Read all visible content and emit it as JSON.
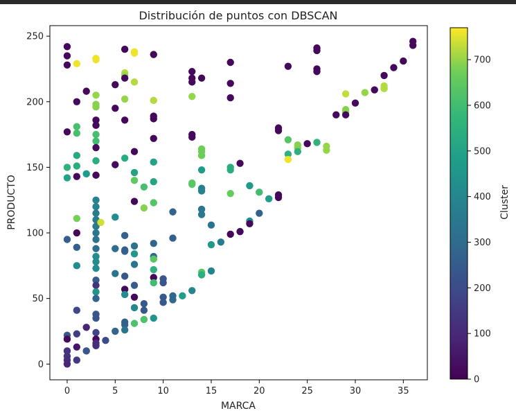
{
  "chart_data": {
    "type": "scatter",
    "title": "Distribución de puntos con DBSCAN",
    "xlabel": "MARCA",
    "ylabel": "PRODUCTO",
    "xlim": [
      -1.8,
      37.5
    ],
    "ylim": [
      -12,
      258
    ],
    "xticks": [
      0,
      5,
      10,
      15,
      20,
      25,
      30,
      35
    ],
    "yticks": [
      0,
      50,
      100,
      150,
      200,
      250
    ],
    "grid": false,
    "colormap": "viridis",
    "colorbar": {
      "label": "Cluster",
      "min": 0,
      "max": 770,
      "ticks": [
        0,
        100,
        200,
        300,
        400,
        500,
        600,
        700
      ]
    },
    "points": [
      {
        "x": 0,
        "y": 242,
        "c": 20
      },
      {
        "x": 0,
        "y": 235,
        "c": 20
      },
      {
        "x": 0,
        "y": 228,
        "c": 20
      },
      {
        "x": 0,
        "y": 177,
        "c": 20
      },
      {
        "x": 0,
        "y": 150,
        "c": 560
      },
      {
        "x": 0,
        "y": 142,
        "c": 500
      },
      {
        "x": 0,
        "y": 95,
        "c": 260
      },
      {
        "x": 0,
        "y": 22,
        "c": 240
      },
      {
        "x": 0,
        "y": 19,
        "c": 20
      },
      {
        "x": 0,
        "y": 10,
        "c": 130
      },
      {
        "x": 0,
        "y": 6,
        "c": 130
      },
      {
        "x": 0,
        "y": 3,
        "c": 110
      },
      {
        "x": 0,
        "y": 0,
        "c": 90
      },
      {
        "x": 1,
        "y": 229,
        "c": 760
      },
      {
        "x": 1,
        "y": 200,
        "c": 20
      },
      {
        "x": 1,
        "y": 181,
        "c": 610
      },
      {
        "x": 1,
        "y": 176,
        "c": 610
      },
      {
        "x": 1,
        "y": 159,
        "c": 520
      },
      {
        "x": 1,
        "y": 151,
        "c": 540
      },
      {
        "x": 1,
        "y": 143,
        "c": 20
      },
      {
        "x": 1,
        "y": 111,
        "c": 680
      },
      {
        "x": 1,
        "y": 100,
        "c": 20
      },
      {
        "x": 1,
        "y": 89,
        "c": 260
      },
      {
        "x": 1,
        "y": 75,
        "c": 420
      },
      {
        "x": 1,
        "y": 41,
        "c": 190
      },
      {
        "x": 1,
        "y": 23,
        "c": 160
      },
      {
        "x": 1,
        "y": 13,
        "c": 50
      },
      {
        "x": 1,
        "y": 3,
        "c": 150
      },
      {
        "x": 2,
        "y": 208,
        "c": 20
      },
      {
        "x": 2,
        "y": 145,
        "c": 470
      },
      {
        "x": 2,
        "y": 28,
        "c": 90
      },
      {
        "x": 2,
        "y": 10,
        "c": 230
      },
      {
        "x": 3,
        "y": 233,
        "c": 760
      },
      {
        "x": 3,
        "y": 232,
        "c": 760
      },
      {
        "x": 3,
        "y": 205,
        "c": 700
      },
      {
        "x": 3,
        "y": 198,
        "c": 690
      },
      {
        "x": 3,
        "y": 196,
        "c": 690
      },
      {
        "x": 3,
        "y": 186,
        "c": 20
      },
      {
        "x": 3,
        "y": 182,
        "c": 20
      },
      {
        "x": 3,
        "y": 175,
        "c": 610
      },
      {
        "x": 3,
        "y": 170,
        "c": 600
      },
      {
        "x": 3,
        "y": 165,
        "c": 20
      },
      {
        "x": 3,
        "y": 155,
        "c": 540
      },
      {
        "x": 3,
        "y": 144,
        "c": 20
      },
      {
        "x": 3,
        "y": 125,
        "c": 380
      },
      {
        "x": 3,
        "y": 120,
        "c": 380
      },
      {
        "x": 3,
        "y": 115,
        "c": 360
      },
      {
        "x": 3,
        "y": 110,
        "c": 360
      },
      {
        "x": 3,
        "y": 105,
        "c": 350
      },
      {
        "x": 3,
        "y": 100,
        "c": 340
      },
      {
        "x": 3,
        "y": 95,
        "c": 330
      },
      {
        "x": 3,
        "y": 88,
        "c": 320
      },
      {
        "x": 3,
        "y": 82,
        "c": 420
      },
      {
        "x": 3,
        "y": 78,
        "c": 420
      },
      {
        "x": 3,
        "y": 73,
        "c": 420
      },
      {
        "x": 3,
        "y": 64,
        "c": 250
      },
      {
        "x": 3,
        "y": 60,
        "c": 130
      },
      {
        "x": 3,
        "y": 55,
        "c": 440
      },
      {
        "x": 3,
        "y": 50,
        "c": 280
      },
      {
        "x": 3,
        "y": 38,
        "c": 230
      },
      {
        "x": 3,
        "y": 35,
        "c": 230
      },
      {
        "x": 3,
        "y": 24,
        "c": 180
      },
      {
        "x": 3,
        "y": 19,
        "c": 20
      },
      {
        "x": 3,
        "y": 16,
        "c": 110
      },
      {
        "x": 3,
        "y": 14,
        "c": 110
      },
      {
        "x": 3.5,
        "y": 108,
        "c": 740
      },
      {
        "x": 4,
        "y": 18,
        "c": 200
      },
      {
        "x": 5,
        "y": 213,
        "c": 20
      },
      {
        "x": 5,
        "y": 195,
        "c": 20
      },
      {
        "x": 5,
        "y": 152,
        "c": 20
      },
      {
        "x": 5,
        "y": 112,
        "c": 420
      },
      {
        "x": 5,
        "y": 88,
        "c": 310
      },
      {
        "x": 5,
        "y": 69,
        "c": 330
      },
      {
        "x": 5,
        "y": 25,
        "c": 280
      },
      {
        "x": 6,
        "y": 240,
        "c": 20
      },
      {
        "x": 6,
        "y": 222,
        "c": 720
      },
      {
        "x": 6,
        "y": 220,
        "c": 700
      },
      {
        "x": 6,
        "y": 218,
        "c": 20
      },
      {
        "x": 6,
        "y": 202,
        "c": 700
      },
      {
        "x": 6,
        "y": 186,
        "c": 20
      },
      {
        "x": 6,
        "y": 157,
        "c": 530
      },
      {
        "x": 6,
        "y": 98,
        "c": 270
      },
      {
        "x": 6,
        "y": 87,
        "c": 260
      },
      {
        "x": 6,
        "y": 86,
        "c": 260
      },
      {
        "x": 6,
        "y": 67,
        "c": 240
      },
      {
        "x": 6,
        "y": 57,
        "c": 20
      },
      {
        "x": 6,
        "y": 53,
        "c": 420
      },
      {
        "x": 6,
        "y": 32,
        "c": 260
      },
      {
        "x": 6,
        "y": 30,
        "c": 260
      },
      {
        "x": 6,
        "y": 26,
        "c": 330
      },
      {
        "x": 7,
        "y": 238,
        "c": 760
      },
      {
        "x": 7,
        "y": 237,
        "c": 760
      },
      {
        "x": 7,
        "y": 215,
        "c": 720
      },
      {
        "x": 7,
        "y": 162,
        "c": 20
      },
      {
        "x": 7,
        "y": 146,
        "c": 500
      },
      {
        "x": 7,
        "y": 140,
        "c": 650
      },
      {
        "x": 7,
        "y": 124,
        "c": 20
      },
      {
        "x": 7,
        "y": 90,
        "c": 330
      },
      {
        "x": 7,
        "y": 84,
        "c": 460
      },
      {
        "x": 7,
        "y": 76,
        "c": 340
      },
      {
        "x": 7,
        "y": 60,
        "c": 250
      },
      {
        "x": 7,
        "y": 51,
        "c": 20
      },
      {
        "x": 7,
        "y": 43,
        "c": 410
      },
      {
        "x": 7,
        "y": 31,
        "c": 620
      },
      {
        "x": 8,
        "y": 135,
        "c": 610
      },
      {
        "x": 8,
        "y": 119,
        "c": 690
      },
      {
        "x": 8,
        "y": 46,
        "c": 240
      },
      {
        "x": 8,
        "y": 41,
        "c": 240
      },
      {
        "x": 8,
        "y": 34,
        "c": 620
      },
      {
        "x": 9,
        "y": 236,
        "c": 20
      },
      {
        "x": 9,
        "y": 201,
        "c": 720
      },
      {
        "x": 9,
        "y": 189,
        "c": 20
      },
      {
        "x": 9,
        "y": 187,
        "c": 20
      },
      {
        "x": 9,
        "y": 172,
        "c": 20
      },
      {
        "x": 9,
        "y": 154,
        "c": 500
      },
      {
        "x": 9,
        "y": 139,
        "c": 510
      },
      {
        "x": 9,
        "y": 123,
        "c": 630
      },
      {
        "x": 9,
        "y": 92,
        "c": 280
      },
      {
        "x": 9,
        "y": 82,
        "c": 290
      },
      {
        "x": 9,
        "y": 80,
        "c": 640
      },
      {
        "x": 9,
        "y": 72,
        "c": 550
      },
      {
        "x": 9,
        "y": 66,
        "c": 20
      },
      {
        "x": 9,
        "y": 62,
        "c": 600
      },
      {
        "x": 9,
        "y": 35,
        "c": 450
      },
      {
        "x": 10,
        "y": 65,
        "c": 230
      },
      {
        "x": 10,
        "y": 62,
        "c": 230
      },
      {
        "x": 10,
        "y": 51,
        "c": 240
      },
      {
        "x": 10,
        "y": 47,
        "c": 240
      },
      {
        "x": 11,
        "y": 116,
        "c": 280
      },
      {
        "x": 11,
        "y": 96,
        "c": 260
      },
      {
        "x": 11,
        "y": 52,
        "c": 290
      },
      {
        "x": 11,
        "y": 49,
        "c": 290
      },
      {
        "x": 12,
        "y": 52,
        "c": 480
      },
      {
        "x": 13,
        "y": 223,
        "c": 20
      },
      {
        "x": 13,
        "y": 218,
        "c": 20
      },
      {
        "x": 13,
        "y": 215,
        "c": 20
      },
      {
        "x": 13,
        "y": 204,
        "c": 700
      },
      {
        "x": 13,
        "y": 175,
        "c": 20
      },
      {
        "x": 13,
        "y": 173,
        "c": 20
      },
      {
        "x": 13,
        "y": 138,
        "c": 640
      },
      {
        "x": 13,
        "y": 137,
        "c": 640
      },
      {
        "x": 13,
        "y": 56,
        "c": 400
      },
      {
        "x": 14,
        "y": 218,
        "c": 20
      },
      {
        "x": 14,
        "y": 164,
        "c": 670
      },
      {
        "x": 14,
        "y": 162,
        "c": 670
      },
      {
        "x": 14,
        "y": 159,
        "c": 670
      },
      {
        "x": 14,
        "y": 148,
        "c": 470
      },
      {
        "x": 14,
        "y": 134,
        "c": 380
      },
      {
        "x": 14,
        "y": 132,
        "c": 380
      },
      {
        "x": 14,
        "y": 118,
        "c": 340
      },
      {
        "x": 14,
        "y": 114,
        "c": 350
      },
      {
        "x": 14,
        "y": 70,
        "c": 630
      },
      {
        "x": 14,
        "y": 68,
        "c": 540
      },
      {
        "x": 15,
        "y": 106,
        "c": 330
      },
      {
        "x": 15,
        "y": 91,
        "c": 460
      },
      {
        "x": 15,
        "y": 71,
        "c": 390
      },
      {
        "x": 16,
        "y": 93,
        "c": 360
      },
      {
        "x": 17,
        "y": 230,
        "c": 20
      },
      {
        "x": 17,
        "y": 214,
        "c": 20
      },
      {
        "x": 17,
        "y": 203,
        "c": 20
      },
      {
        "x": 17,
        "y": 150,
        "c": 540
      },
      {
        "x": 17,
        "y": 148,
        "c": 540
      },
      {
        "x": 17,
        "y": 130,
        "c": 660
      },
      {
        "x": 17,
        "y": 99,
        "c": 20
      },
      {
        "x": 18,
        "y": 153,
        "c": 20
      },
      {
        "x": 18,
        "y": 101,
        "c": 20
      },
      {
        "x": 19,
        "y": 136,
        "c": 470
      },
      {
        "x": 19,
        "y": 109,
        "c": 420
      },
      {
        "x": 19,
        "y": 107,
        "c": 20
      },
      {
        "x": 20,
        "y": 131,
        "c": 600
      },
      {
        "x": 20,
        "y": 115,
        "c": 270
      },
      {
        "x": 21,
        "y": 126,
        "c": 480
      },
      {
        "x": 22,
        "y": 180,
        "c": 20
      },
      {
        "x": 22,
        "y": 178,
        "c": 20
      },
      {
        "x": 22,
        "y": 129,
        "c": 20
      },
      {
        "x": 22,
        "y": 127,
        "c": 20
      },
      {
        "x": 23,
        "y": 227,
        "c": 20
      },
      {
        "x": 23,
        "y": 171,
        "c": 630
      },
      {
        "x": 23,
        "y": 160,
        "c": 550
      },
      {
        "x": 23,
        "y": 156,
        "c": 760
      },
      {
        "x": 24,
        "y": 167,
        "c": 690
      },
      {
        "x": 24,
        "y": 165,
        "c": 690
      },
      {
        "x": 24,
        "y": 162,
        "c": 550
      },
      {
        "x": 25,
        "y": 168,
        "c": 20
      },
      {
        "x": 26,
        "y": 241,
        "c": 20
      },
      {
        "x": 26,
        "y": 239,
        "c": 20
      },
      {
        "x": 26,
        "y": 225,
        "c": 20
      },
      {
        "x": 26,
        "y": 223,
        "c": 20
      },
      {
        "x": 26,
        "y": 169,
        "c": 560
      },
      {
        "x": 27,
        "y": 166,
        "c": 700
      },
      {
        "x": 27,
        "y": 163,
        "c": 700
      },
      {
        "x": 28,
        "y": 190,
        "c": 20
      },
      {
        "x": 29,
        "y": 206,
        "c": 730
      },
      {
        "x": 29,
        "y": 194,
        "c": 690
      },
      {
        "x": 29,
        "y": 192,
        "c": 690
      },
      {
        "x": 29,
        "y": 190,
        "c": 20
      },
      {
        "x": 30,
        "y": 199,
        "c": 20
      },
      {
        "x": 31,
        "y": 207,
        "c": 700
      },
      {
        "x": 32,
        "y": 209,
        "c": 20
      },
      {
        "x": 33,
        "y": 220,
        "c": 20
      },
      {
        "x": 33,
        "y": 212,
        "c": 720
      },
      {
        "x": 33,
        "y": 210,
        "c": 720
      },
      {
        "x": 34,
        "y": 226,
        "c": 20
      },
      {
        "x": 35,
        "y": 231,
        "c": 20
      },
      {
        "x": 36,
        "y": 246,
        "c": 20
      },
      {
        "x": 36,
        "y": 243,
        "c": 20
      }
    ]
  }
}
